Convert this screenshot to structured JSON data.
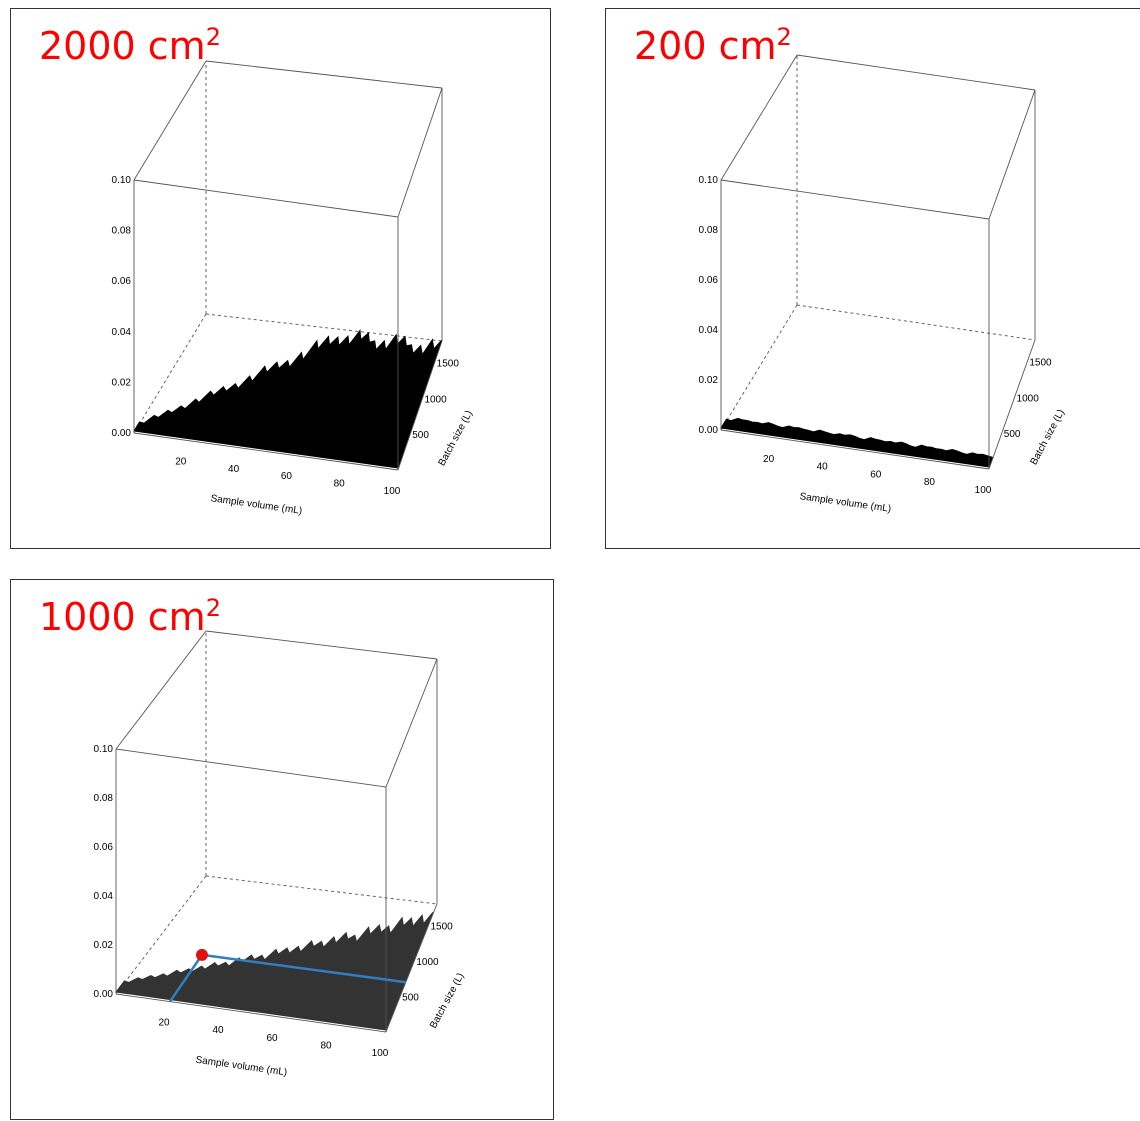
{
  "chart_data": [
    {
      "type": "surface3d",
      "title_value": "2000 cm",
      "title_exp": "2",
      "title_color": "#ff0000",
      "xlabel": "Sample volume (mL)",
      "ylabel": "Batch size (L)",
      "xlim": [
        0,
        100
      ],
      "ylim": [
        0,
        1800
      ],
      "zlim": [
        0,
        0.1
      ],
      "x_ticks": [
        "20",
        "40",
        "60",
        "80",
        "100"
      ],
      "y_ticks": [
        "500",
        "1000",
        "1500"
      ],
      "z_ticks": [
        "0.00",
        "0.02",
        "0.04",
        "0.06",
        "0.08",
        "0.10"
      ],
      "surface_color": "#000000",
      "note": ""
    },
    {
      "type": "surface3d",
      "title_value": "200 cm",
      "title_exp": "2",
      "title_color": "#ff0000",
      "xlabel": "Sample volume (mL)",
      "ylabel": "Batch size (L)",
      "xlim": [
        0,
        100
      ],
      "ylim": [
        0,
        1800
      ],
      "zlim": [
        0,
        0.1
      ],
      "x_ticks": [
        "20",
        "40",
        "60",
        "80",
        "100"
      ],
      "y_ticks": [
        "500",
        "1000",
        "1500"
      ],
      "z_ticks": [
        "0.00",
        "0.02",
        "0.04",
        "0.06",
        "0.08",
        "0.10"
      ],
      "surface_color": "#000000"
    },
    {
      "type": "surface3d",
      "title_value": "1000 cm",
      "title_exp": "2",
      "title_color": "#ff0000",
      "xlabel": "Sample volume (mL)",
      "ylabel": "Batch size (L)",
      "xlim": [
        0,
        100
      ],
      "ylim": [
        0,
        1800
      ],
      "zlim": [
        0,
        0.1
      ],
      "x_ticks": [
        "20",
        "40",
        "60",
        "80",
        "100"
      ],
      "y_ticks": [
        "500",
        "1000",
        "1500"
      ],
      "z_ticks": [
        "0.00",
        "0.02",
        "0.04",
        "0.06",
        "0.08",
        "0.10"
      ],
      "surface_color": "#333333",
      "highlight_point": {
        "x": 20,
        "y": 700
      },
      "highlight_color": "#e01010",
      "guide_color": "#2f7fc1"
    }
  ]
}
